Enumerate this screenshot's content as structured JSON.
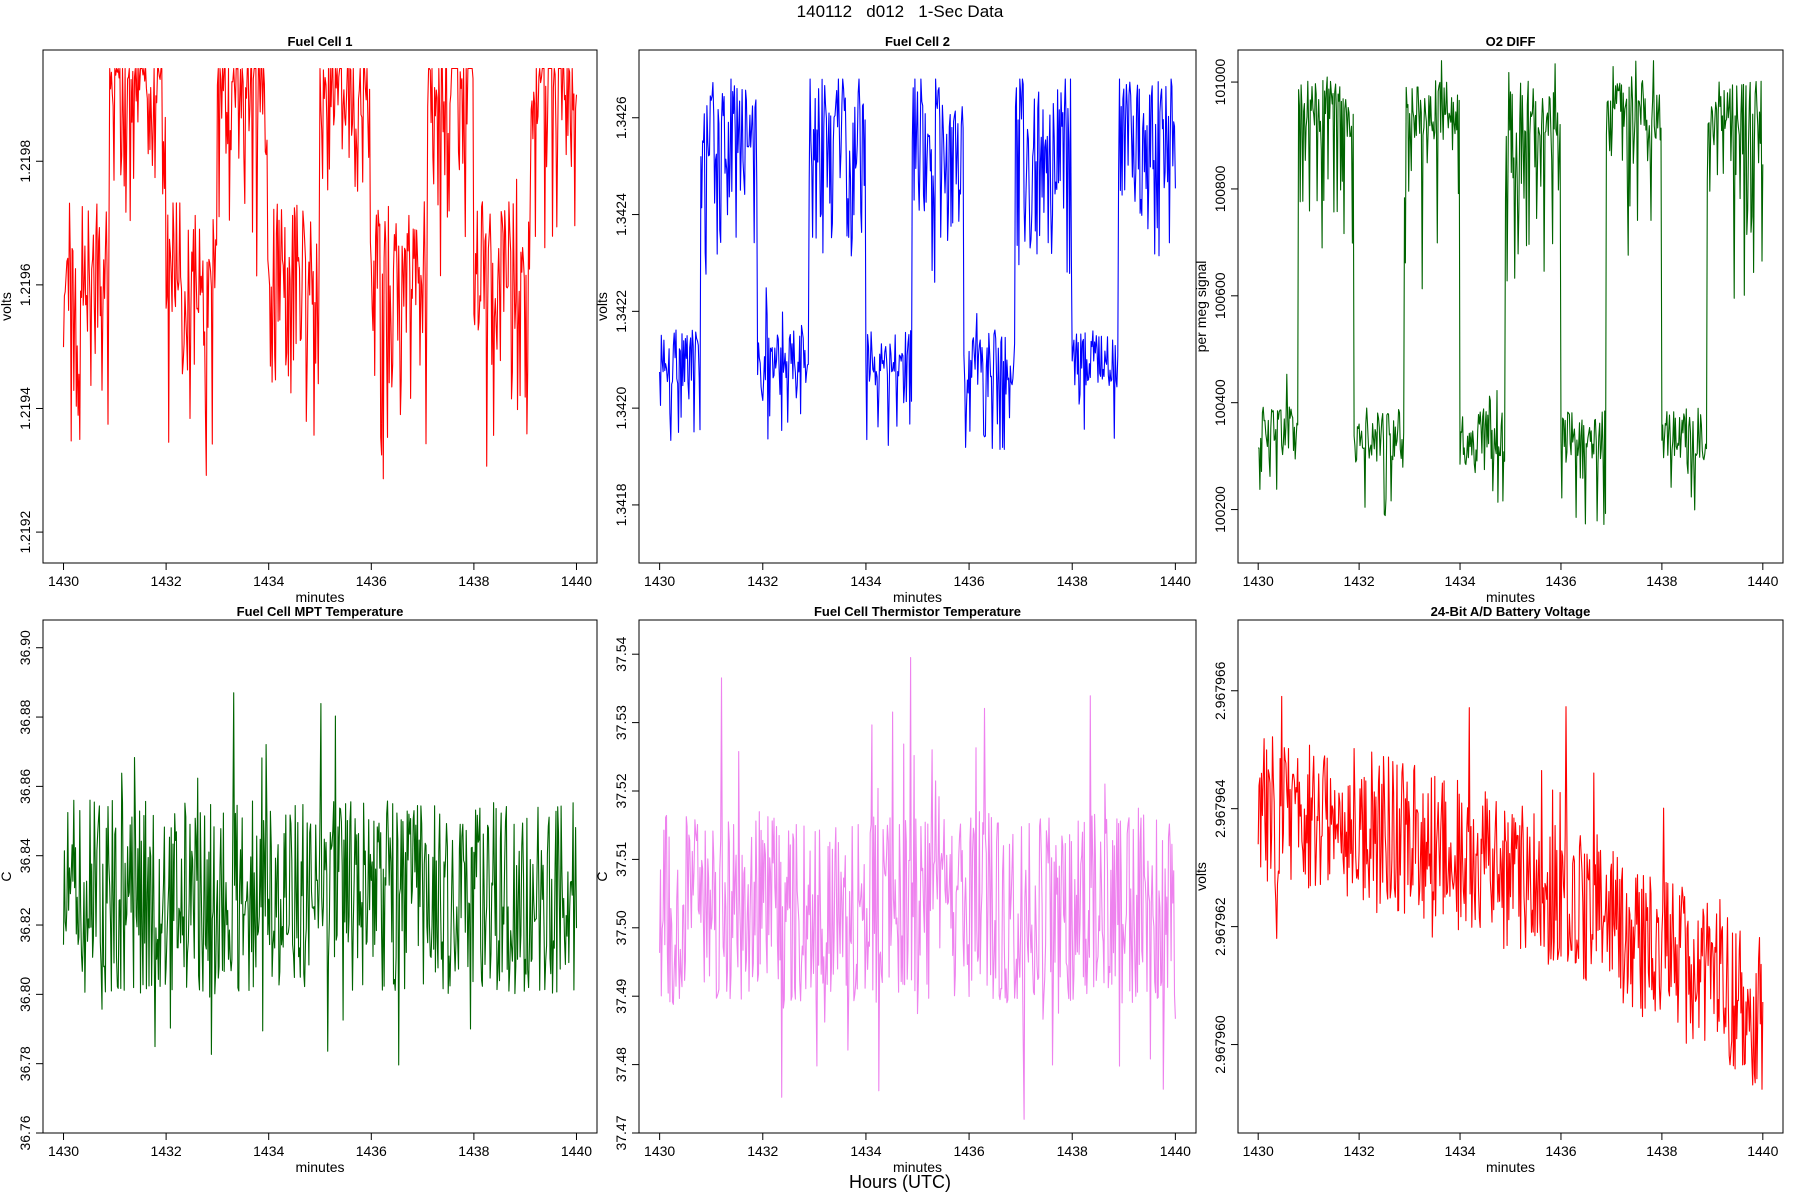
{
  "header": {
    "title": "140112   d012   1-Sec Data"
  },
  "footer": {
    "xlabel": "Hours (UTC)"
  },
  "chart_data": [
    {
      "type": "line",
      "title": "Fuel Cell 1",
      "xlabel": "minutes",
      "ylabel": "volts",
      "color": "#ff0000",
      "xlim": [
        1429.6,
        1440.4
      ],
      "ylim": [
        1.21915,
        1.21998
      ],
      "xticks": [
        1430,
        1432,
        1434,
        1436,
        1438,
        1440
      ],
      "yticks": [
        1.2192,
        1.2194,
        1.2196,
        1.2198
      ],
      "ytick_labels": [
        "1.2192",
        "1.2194",
        "1.2196",
        "1.2198"
      ],
      "shape": {
        "kind": "square",
        "levels": [
          0.6,
          1.0,
          0.3
        ],
        "noise": 0.12,
        "spikes": 0.35,
        "transitions": [
          1430.9,
          1432.0,
          1433.0,
          1434.0,
          1435.0,
          1436.0,
          1437.1,
          1438.0,
          1439.1
        ],
        "ymin": 1.21918,
        "ymax": 1.21995,
        "seed": 11
      }
    },
    {
      "type": "line",
      "title": "Fuel Cell 2",
      "xlabel": "minutes",
      "ylabel": "volts",
      "color": "#0000ff",
      "xlim": [
        1429.6,
        1440.4
      ],
      "ylim": [
        1.34168,
        1.34274
      ],
      "xticks": [
        1430,
        1432,
        1434,
        1436,
        1438,
        1440
      ],
      "yticks": [
        1.3418,
        1.342,
        1.3422,
        1.3424,
        1.3426
      ],
      "ytick_labels": [
        "1.3418",
        "1.3420",
        "1.3422",
        "1.3424",
        "1.3426"
      ],
      "shape": {
        "kind": "square",
        "levels": [
          0.4,
          0.95,
          0.45
        ],
        "noise": 0.06,
        "spikes": 0.55,
        "transitions": [
          1430.8,
          1431.9,
          1432.9,
          1434.0,
          1434.9,
          1435.9,
          1436.9,
          1438.0,
          1438.9
        ],
        "ymin": 1.34172,
        "ymax": 1.34268,
        "seed": 23
      }
    },
    {
      "type": "line",
      "title": "O2 DIFF",
      "xlabel": "minutes",
      "ylabel": "per meg signal",
      "color": "#006400",
      "xlim": [
        1429.6,
        1440.4
      ],
      "ylim": [
        100100,
        101060
      ],
      "xticks": [
        1430,
        1432,
        1434,
        1436,
        1438,
        1440
      ],
      "yticks": [
        100200,
        100400,
        100600,
        100800,
        101000
      ],
      "ytick_labels": [
        "100200",
        "100400",
        "100600",
        "100800",
        "101000"
      ],
      "shape": {
        "kind": "square",
        "levels": [
          0.22,
          0.9,
          0.22
        ],
        "noise": 0.06,
        "spikes": 0.25,
        "transitions": [
          1430.8,
          1431.9,
          1432.9,
          1434.0,
          1434.9,
          1436.0,
          1436.9,
          1438.0,
          1438.9
        ],
        "ymin": 100140,
        "ymax": 101040,
        "seed": 37
      }
    },
    {
      "type": "line",
      "title": "Fuel Cell MPT Temperature",
      "xlabel": "minutes",
      "ylabel": "C",
      "color": "#006400",
      "xlim": [
        1429.6,
        1440.4
      ],
      "ylim": [
        36.76,
        36.908
      ],
      "xticks": [
        1430,
        1432,
        1434,
        1436,
        1438,
        1440
      ],
      "yticks": [
        36.76,
        36.78,
        36.8,
        36.82,
        36.84,
        36.86,
        36.88,
        36.9
      ],
      "ytick_labels": [
        "36.76",
        "36.78",
        "36.80",
        "36.82",
        "36.84",
        "36.86",
        "36.88",
        "36.90"
      ],
      "shape": {
        "kind": "noise",
        "center": 36.828,
        "amp": 0.028,
        "ymin": 36.765,
        "ymax": 36.9,
        "seed": 51
      }
    },
    {
      "type": "line",
      "title": "Fuel Cell Thermistor Temperature",
      "xlabel": "minutes",
      "ylabel": "C",
      "color": "#ee82ee",
      "xlim": [
        1429.6,
        1440.4
      ],
      "ylim": [
        37.47,
        37.545
      ],
      "xticks": [
        1430,
        1432,
        1434,
        1436,
        1438,
        1440
      ],
      "yticks": [
        37.47,
        37.48,
        37.49,
        37.5,
        37.51,
        37.52,
        37.53,
        37.54
      ],
      "ytick_labels": [
        "37.47",
        "37.48",
        "37.49",
        "37.50",
        "37.51",
        "37.52",
        "37.53",
        "37.54"
      ],
      "shape": {
        "kind": "noise",
        "center": 37.503,
        "amp": 0.014,
        "ymin": 37.472,
        "ymax": 37.542,
        "seed": 67
      }
    },
    {
      "type": "line",
      "title": "24-Bit A/D Battery Voltage",
      "xlabel": "minutes",
      "ylabel": "volts",
      "color": "#ff0000",
      "xlim": [
        1429.6,
        1440.4
      ],
      "ylim": [
        2.9679585,
        2.9679672
      ],
      "xticks": [
        1430,
        1432,
        1434,
        1436,
        1438,
        1440
      ],
      "yticks": [
        2.96796,
        2.967962,
        2.967964,
        2.967966
      ],
      "ytick_labels": [
        "2.967960",
        "2.967962",
        "2.967964",
        "2.967966"
      ],
      "shape": {
        "kind": "trend",
        "start": 2.967964,
        "end": 2.9679605,
        "amp": 1.3e-06,
        "ymin": 2.9679588,
        "ymax": 2.967967,
        "seed": 83
      }
    }
  ]
}
